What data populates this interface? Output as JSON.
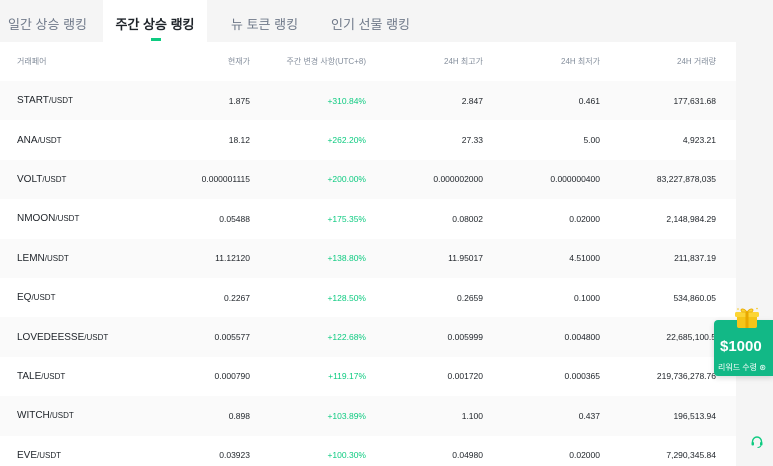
{
  "tabs": [
    {
      "label": "일간 상승 랭킹",
      "active": false
    },
    {
      "label": "주간 상승 랭킹",
      "active": true
    },
    {
      "label": "뉴 토큰 랭킹",
      "active": false
    },
    {
      "label": "인기 선물 랭킹",
      "active": false
    }
  ],
  "table": {
    "headers": {
      "pair": "거래페어",
      "price": "현재가",
      "change": "주간 변경 사항(UTC+8)",
      "high": "24H 최고가",
      "low": "24H 최저가",
      "volume": "24H 거래량"
    },
    "rows": [
      {
        "symbol": "START",
        "quote": "/USDT",
        "price": "1.875",
        "change": "+310.84%",
        "high": "2.847",
        "low": "0.461",
        "volume": "177,631.68"
      },
      {
        "symbol": "ANA",
        "quote": "/USDT",
        "price": "18.12",
        "change": "+262.20%",
        "high": "27.33",
        "low": "5.00",
        "volume": "4,923.21"
      },
      {
        "symbol": "VOLT",
        "quote": "/USDT",
        "price": "0.000001115",
        "change": "+200.00%",
        "high": "0.000002000",
        "low": "0.000000400",
        "volume": "83,227,878,035"
      },
      {
        "symbol": "NMOON",
        "quote": "/USDT",
        "price": "0.05488",
        "change": "+175.35%",
        "high": "0.08002",
        "low": "0.02000",
        "volume": "2,148,984.29"
      },
      {
        "symbol": "LEMN",
        "quote": "/USDT",
        "price": "11.12120",
        "change": "+138.80%",
        "high": "11.95017",
        "low": "4.51000",
        "volume": "211,837.19"
      },
      {
        "symbol": "EQ",
        "quote": "/USDT",
        "price": "0.2267",
        "change": "+128.50%",
        "high": "0.2659",
        "low": "0.1000",
        "volume": "534,860.05"
      },
      {
        "symbol": "LOVEDEESSE",
        "quote": "/USDT",
        "price": "0.005577",
        "change": "+122.68%",
        "high": "0.005999",
        "low": "0.004800",
        "volume": "22,685,100.5"
      },
      {
        "symbol": "TALE",
        "quote": "/USDT",
        "price": "0.000790",
        "change": "+119.17%",
        "high": "0.001720",
        "low": "0.000365",
        "volume": "219,736,278.76"
      },
      {
        "symbol": "WITCH",
        "quote": "/USDT",
        "price": "0.898",
        "change": "+103.89%",
        "high": "1.100",
        "low": "0.437",
        "volume": "196,513.94"
      },
      {
        "symbol": "EVE",
        "quote": "/USDT",
        "price": "0.03923",
        "change": "+100.30%",
        "high": "0.04980",
        "low": "0.02000",
        "volume": "7,290,345.84"
      }
    ]
  },
  "reward": {
    "amount": "$1000",
    "label": "리워드 수령 ⊛",
    "icon": "gift-icon"
  },
  "support": {
    "icon": "headset-icon"
  },
  "colors": {
    "accent": "#0ecb81",
    "positive": "#0ecb81",
    "reward_bg": "#12b886"
  }
}
